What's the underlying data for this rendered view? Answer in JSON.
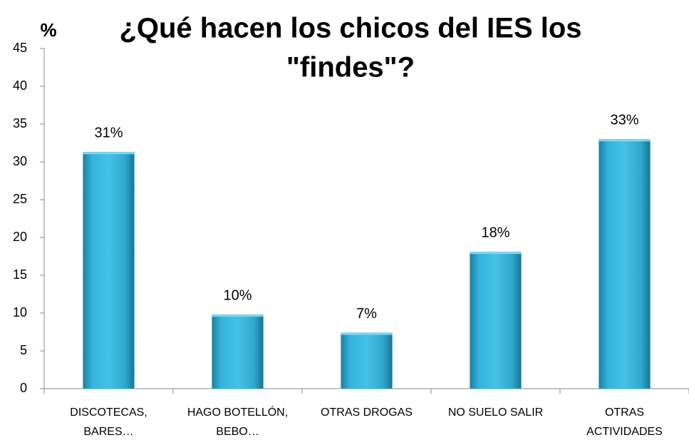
{
  "chart_data": {
    "type": "bar",
    "title": [
      "¿Qué hacen los chicos del  IES los",
      "\"findes\"?"
    ],
    "y_label": "%",
    "categories": [
      [
        "DISCOTECAS,",
        "BARES…"
      ],
      [
        "HAGO BOTELLÓN,",
        "BEBO…"
      ],
      [
        "OTRAS DROGAS"
      ],
      [
        "NO SUELO SALIR"
      ],
      [
        "OTRAS",
        "ACTIVIDADES"
      ]
    ],
    "values": [
      31.3,
      9.8,
      7.4,
      18.1,
      33
    ],
    "value_labels": [
      "31%",
      "10%",
      "7%",
      "18%",
      "33%"
    ],
    "color": "#33b4dc",
    "ylim": [
      0,
      45
    ],
    "yticks": [
      0,
      5,
      10,
      15,
      20,
      25,
      30,
      35,
      40,
      45
    ],
    "grid": false
  }
}
